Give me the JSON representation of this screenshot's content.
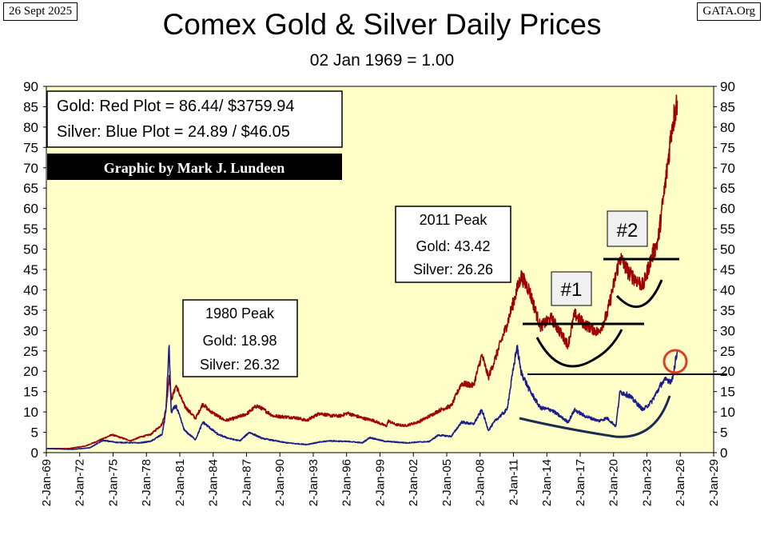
{
  "header": {
    "date": "26 Sept 2025",
    "source": "GATA.Org",
    "title": "Comex Gold & Silver Daily Prices",
    "subtitle": "02 Jan 1969 = 1.00"
  },
  "legend": {
    "gold_line": "Gold: Red Plot =  86.44/ $3759.94",
    "silver_line": "Silver: Blue Plot = 24.89 / $46.05",
    "credit": "Graphic by Mark J. Lundeen"
  },
  "annotations": {
    "peak_1980": {
      "title": "1980 Peak",
      "gold": "Gold:  18.98",
      "silver": "Silver: 26.32"
    },
    "peak_2011": {
      "title": "2011 Peak",
      "gold": "Gold:  43.42",
      "silver": "Silver: 26.26"
    },
    "marker_1": "#1",
    "marker_2": "#2"
  },
  "colors": {
    "plot_bg": "#ffffc8",
    "gold": "#a00000",
    "silver": "#1c1c8c",
    "credit_bg": "#000000",
    "circle": "#e03c28"
  },
  "chart_data": {
    "type": "line",
    "x_type": "date",
    "ylim": [
      0,
      90
    ],
    "xlim": [
      "1969-01-02",
      "2029-01-02"
    ],
    "y_ticks": [
      0,
      5,
      10,
      15,
      20,
      25,
      30,
      35,
      40,
      45,
      50,
      55,
      60,
      65,
      70,
      75,
      80,
      85,
      90
    ],
    "x_tick_labels": [
      "2-Jan-69",
      "2-Jan-72",
      "2-Jan-75",
      "2-Jan-78",
      "2-Jan-81",
      "2-Jan-84",
      "2-Jan-87",
      "2-Jan-90",
      "2-Jan-93",
      "2-Jan-96",
      "2-Jan-99",
      "2-Jan-02",
      "2-Jan-05",
      "2-Jan-08",
      "2-Jan-11",
      "2-Jan-14",
      "2-Jan-17",
      "2-Jan-20",
      "2-Jan-23",
      "2-Jan-26",
      "2-Jan-29"
    ],
    "x_tick_dates": [
      "1969-01-02",
      "1972-01-02",
      "1975-01-02",
      "1978-01-02",
      "1981-01-02",
      "1984-01-02",
      "1987-01-02",
      "1990-01-02",
      "1993-01-02",
      "1996-01-02",
      "1999-01-02",
      "2002-01-02",
      "2005-01-02",
      "2008-01-02",
      "2011-01-02",
      "2014-01-02",
      "2017-01-02",
      "2020-01-02",
      "2023-01-02",
      "2026-01-02",
      "2029-01-02"
    ],
    "grid": false,
    "legend_position": "top-left",
    "series": [
      {
        "color": "#a00000",
        "points": [
          [
            "1969-01-02",
            1.0
          ],
          [
            "1971-01-01",
            1.0
          ],
          [
            "1972-07-01",
            1.6
          ],
          [
            "1973-07-01",
            2.7
          ],
          [
            "1974-12-01",
            4.4
          ],
          [
            "1975-08-01",
            3.8
          ],
          [
            "1976-08-01",
            2.9
          ],
          [
            "1977-06-01",
            3.8
          ],
          [
            "1978-06-01",
            4.5
          ],
          [
            "1979-06-01",
            7.0
          ],
          [
            "1979-10-01",
            10.5
          ],
          [
            "1980-01-21",
            18.98
          ],
          [
            "1980-04-01",
            13.0
          ],
          [
            "1980-09-01",
            16.5
          ],
          [
            "1981-06-01",
            11.5
          ],
          [
            "1982-06-01",
            8.4
          ],
          [
            "1983-02-01",
            12.0
          ],
          [
            "1983-08-01",
            10.5
          ],
          [
            "1984-06-01",
            9.0
          ],
          [
            "1985-02-01",
            7.9
          ],
          [
            "1986-01-01",
            8.5
          ],
          [
            "1987-01-01",
            9.5
          ],
          [
            "1987-12-01",
            11.5
          ],
          [
            "1988-06-01",
            10.8
          ],
          [
            "1989-06-01",
            9.0
          ],
          [
            "1990-06-01",
            8.8
          ],
          [
            "1991-06-01",
            8.6
          ],
          [
            "1992-06-01",
            7.9
          ],
          [
            "1993-08-01",
            9.7
          ],
          [
            "1994-06-01",
            9.1
          ],
          [
            "1995-06-01",
            9.0
          ],
          [
            "1996-02-01",
            9.7
          ],
          [
            "1997-06-01",
            8.5
          ],
          [
            "1998-06-01",
            7.9
          ],
          [
            "1999-08-01",
            6.5
          ],
          [
            "1999-10-01",
            7.8
          ],
          [
            "2000-06-01",
            6.9
          ],
          [
            "2001-04-01",
            6.6
          ],
          [
            "2002-06-01",
            7.5
          ],
          [
            "2003-06-01",
            8.9
          ],
          [
            "2004-06-01",
            10.5
          ],
          [
            "2005-06-01",
            11.5
          ],
          [
            "2006-05-01",
            17.0
          ],
          [
            "2007-06-01",
            16.5
          ],
          [
            "2008-03-01",
            24.0
          ],
          [
            "2008-10-01",
            18.5
          ],
          [
            "2009-06-01",
            23.5
          ],
          [
            "2010-06-01",
            31.5
          ],
          [
            "2011-09-06",
            43.42
          ],
          [
            "2012-06-01",
            40.0
          ],
          [
            "2013-06-01",
            31.0
          ],
          [
            "2014-06-01",
            33.0
          ],
          [
            "2015-12-01",
            26.5
          ],
          [
            "2016-07-01",
            34.0
          ],
          [
            "2017-06-01",
            31.5
          ],
          [
            "2018-09-01",
            29.5
          ],
          [
            "2019-06-01",
            34.0
          ],
          [
            "2020-08-01",
            48.0
          ],
          [
            "2021-06-01",
            44.0
          ],
          [
            "2022-09-01",
            41.0
          ],
          [
            "2023-06-01",
            48.0
          ],
          [
            "2024-01-01",
            52.0
          ],
          [
            "2024-10-01",
            68.0
          ],
          [
            "2025-04-01",
            80.0
          ],
          [
            "2025-09-26",
            86.44
          ]
        ]
      },
      {
        "color": "#1c1c8c",
        "points": [
          [
            "1969-01-02",
            1.0
          ],
          [
            "1971-06-01",
            0.8
          ],
          [
            "1972-12-01",
            1.2
          ],
          [
            "1974-02-01",
            3.0
          ],
          [
            "1975-06-01",
            2.5
          ],
          [
            "1977-06-01",
            2.4
          ],
          [
            "1978-06-01",
            2.8
          ],
          [
            "1979-06-01",
            4.5
          ],
          [
            "1979-10-01",
            10.0
          ],
          [
            "1980-01-18",
            26.32
          ],
          [
            "1980-03-27",
            10.0
          ],
          [
            "1980-09-01",
            11.5
          ],
          [
            "1981-06-01",
            5.5
          ],
          [
            "1982-06-01",
            3.2
          ],
          [
            "1983-02-01",
            7.5
          ],
          [
            "1984-06-01",
            4.5
          ],
          [
            "1985-06-01",
            3.5
          ],
          [
            "1986-06-01",
            2.9
          ],
          [
            "1987-04-01",
            5.0
          ],
          [
            "1988-06-01",
            3.5
          ],
          [
            "1990-06-01",
            2.5
          ],
          [
            "1991-06-01",
            2.2
          ],
          [
            "1992-06-01",
            2.0
          ],
          [
            "1993-06-01",
            2.5
          ],
          [
            "1994-06-01",
            2.9
          ],
          [
            "1996-06-01",
            2.7
          ],
          [
            "1997-06-01",
            2.4
          ],
          [
            "1998-02-01",
            3.7
          ],
          [
            "1999-06-01",
            2.8
          ],
          [
            "2001-06-01",
            2.4
          ],
          [
            "2002-06-01",
            2.6
          ],
          [
            "2003-06-01",
            2.7
          ],
          [
            "2004-04-01",
            4.3
          ],
          [
            "2005-06-01",
            4.0
          ],
          [
            "2006-05-01",
            7.5
          ],
          [
            "2007-06-01",
            7.0
          ],
          [
            "2008-03-01",
            10.5
          ],
          [
            "2008-10-01",
            5.5
          ],
          [
            "2009-06-01",
            8.0
          ],
          [
            "2010-06-01",
            10.5
          ],
          [
            "2011-04-28",
            26.26
          ],
          [
            "2011-09-01",
            20.0
          ],
          [
            "2012-06-01",
            15.5
          ],
          [
            "2013-06-01",
            11.0
          ],
          [
            "2014-06-01",
            10.5
          ],
          [
            "2015-12-01",
            7.5
          ],
          [
            "2016-07-01",
            10.5
          ],
          [
            "2017-06-01",
            9.0
          ],
          [
            "2018-09-01",
            7.8
          ],
          [
            "2019-06-01",
            8.5
          ],
          [
            "2020-03-18",
            6.5
          ],
          [
            "2020-08-01",
            15.0
          ],
          [
            "2021-06-01",
            14.0
          ],
          [
            "2022-09-01",
            10.5
          ],
          [
            "2023-06-01",
            12.5
          ],
          [
            "2024-05-01",
            17.0
          ],
          [
            "2024-10-01",
            18.0
          ],
          [
            "2025-04-01",
            17.5
          ],
          [
            "2025-09-26",
            24.89
          ]
        ]
      }
    ]
  }
}
